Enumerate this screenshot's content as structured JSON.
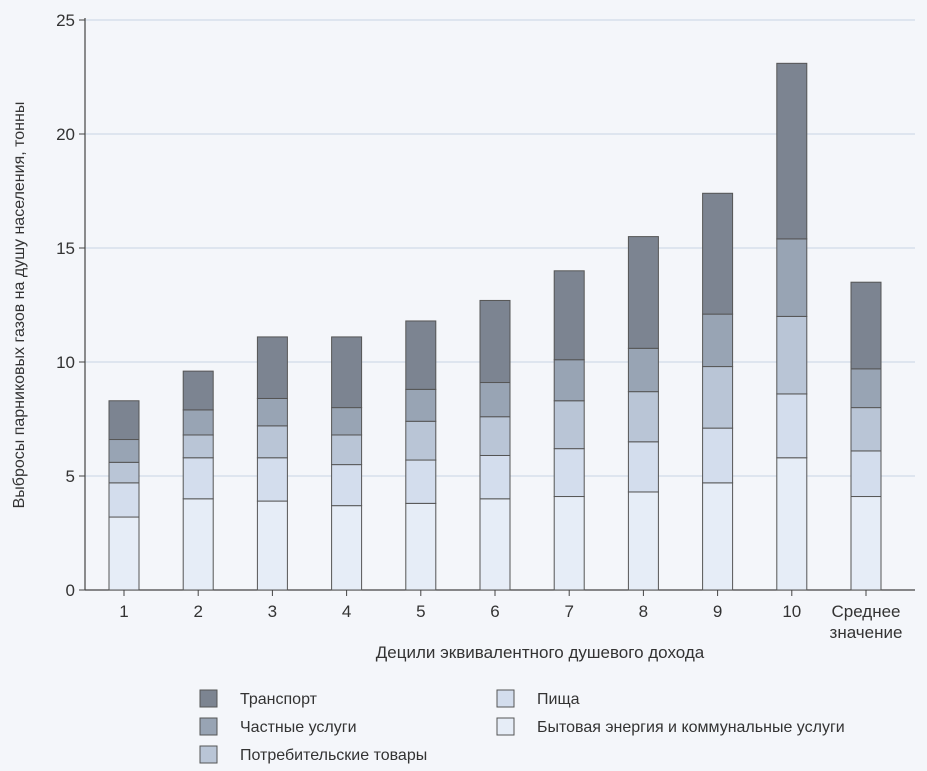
{
  "chart_data": {
    "type": "bar",
    "stacked": true,
    "title": "",
    "xlabel": "Децили эквивалентного душевого дохода",
    "ylabel": "Выбросы парниковых газов на душу населения, тонны",
    "ylim": [
      0,
      25
    ],
    "yticks": [
      0,
      5,
      10,
      15,
      20,
      25
    ],
    "grid": true,
    "legend_position": "bottom",
    "categories": [
      "1",
      "2",
      "3",
      "4",
      "5",
      "6",
      "7",
      "8",
      "9",
      "10",
      "Среднее значение"
    ],
    "series": [
      {
        "name": "Бытовая энергия и коммунальные услуги",
        "color": "#e6edf7",
        "values": [
          3.2,
          4.0,
          3.9,
          3.7,
          3.8,
          4.0,
          4.1,
          4.3,
          4.7,
          5.8,
          4.1
        ]
      },
      {
        "name": "Пища",
        "color": "#d3dded",
        "values": [
          1.5,
          1.8,
          1.9,
          1.8,
          1.9,
          1.9,
          2.1,
          2.2,
          2.4,
          2.8,
          2.0
        ]
      },
      {
        "name": "Потребительские товары",
        "color": "#b9c5d6",
        "values": [
          0.9,
          1.0,
          1.4,
          1.3,
          1.7,
          1.7,
          2.1,
          2.2,
          2.7,
          3.4,
          1.9
        ]
      },
      {
        "name": "Частные услуги",
        "color": "#98a4b4",
        "values": [
          1.0,
          1.1,
          1.2,
          1.2,
          1.4,
          1.5,
          1.8,
          1.9,
          2.3,
          3.4,
          1.7
        ]
      },
      {
        "name": "Транспорт",
        "color": "#7c8491",
        "values": [
          1.7,
          1.7,
          2.7,
          3.1,
          3.0,
          3.6,
          3.9,
          4.9,
          5.3,
          7.7,
          3.8
        ]
      }
    ]
  },
  "legend": {
    "left": [
      "Транспорт",
      "Частные услуги",
      "Потребительские товары"
    ],
    "right": [
      "Пища",
      "Бытовая энергия и коммунальные услуги"
    ]
  }
}
